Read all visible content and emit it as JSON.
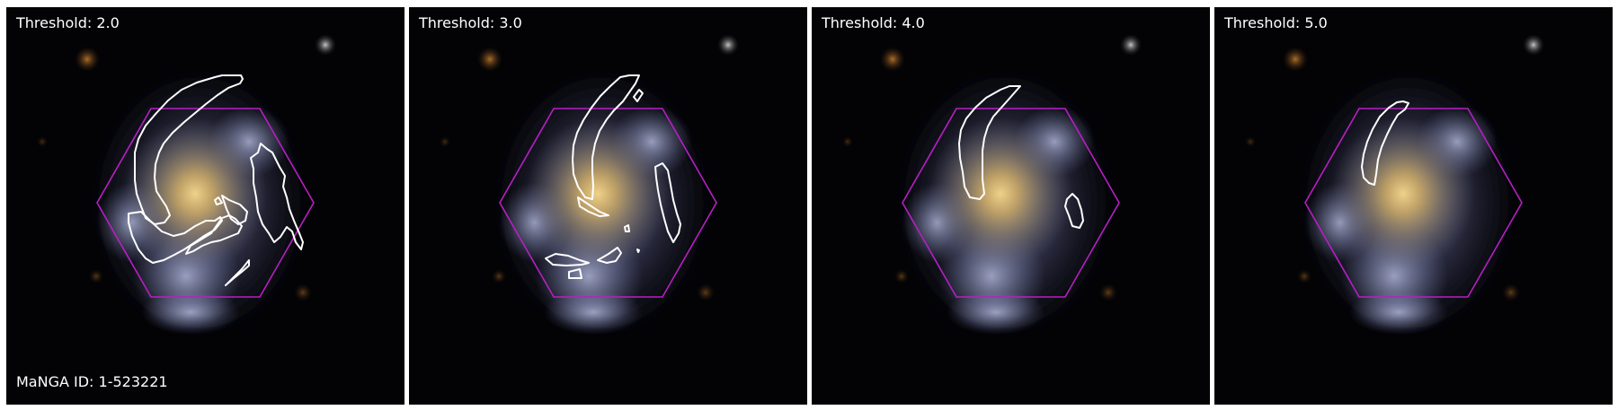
{
  "figure": {
    "manga_id_label": "MaNGA ID: 1-523221",
    "colors": {
      "background": "#030305",
      "hexagon": "#b81fc4",
      "contour": "#ffffff",
      "separator": "#ffffff"
    },
    "panels": [
      {
        "threshold_label": "Threshold: 2.0"
      },
      {
        "threshold_label": "Threshold: 3.0"
      },
      {
        "threshold_label": "Threshold: 4.0"
      },
      {
        "threshold_label": "Threshold: 5.0"
      }
    ]
  }
}
